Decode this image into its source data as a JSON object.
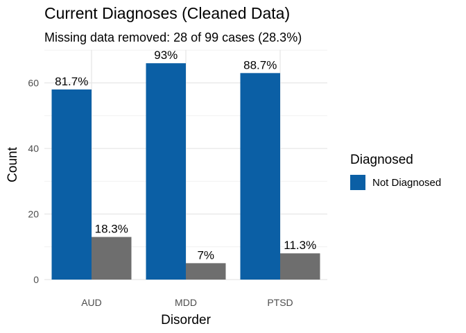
{
  "chart_data": {
    "type": "bar",
    "title": "Current Diagnoses (Cleaned Data)",
    "subtitle": "Missing data removed: 28 of 99 cases (28.3%)",
    "xlabel": "Disorder",
    "ylabel": "Count",
    "categories": [
      "AUD",
      "MDD",
      "PTSD"
    ],
    "ylim": [
      0,
      70
    ],
    "yticks": [
      0,
      20,
      40,
      60
    ],
    "grid": true,
    "legend": {
      "title": "Diagnosed",
      "position": "right"
    },
    "series": [
      {
        "name": "Not Diagnosed",
        "color": "#0B5FA5",
        "values": [
          58,
          66,
          63
        ],
        "labels": [
          "81.7%",
          "93%",
          "88.7%"
        ]
      },
      {
        "name": "",
        "color": "#6E6E6E",
        "values": [
          13,
          5,
          8
        ],
        "labels": [
          "18.3%",
          "7%",
          "11.3%"
        ]
      }
    ]
  }
}
